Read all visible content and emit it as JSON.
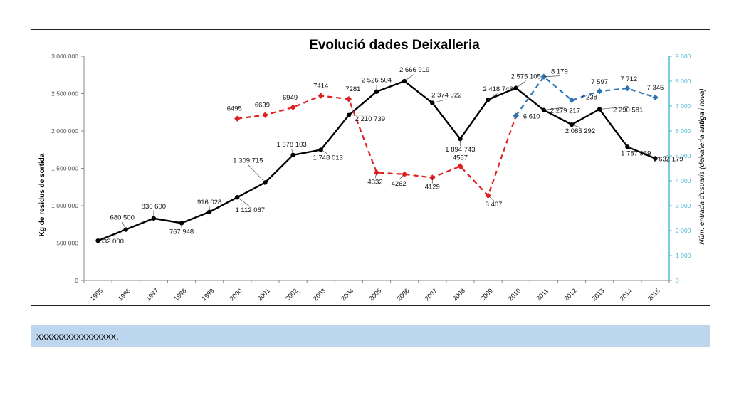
{
  "caption": "xxxxxxxxxxxxxxxx.",
  "chart_data": {
    "type": "line",
    "title": "Evolució dades Deixalleria",
    "ylabel": "Kg de residus de sortida",
    "y2label_parts": [
      "Núm. entrada d'usuaris (deixalleria ",
      "antiga",
      " i nova)"
    ],
    "categories": [
      "1995",
      "1996",
      "1997",
      "1998",
      "1999",
      "2000",
      "2001",
      "2002",
      "2003",
      "2004",
      "2005",
      "2006",
      "2007",
      "2008",
      "2009",
      "2010",
      "2011",
      "2012",
      "2013",
      "2014",
      "2015"
    ],
    "ylim": [
      0,
      3000000
    ],
    "y2lim": [
      0,
      9000
    ],
    "yticks": [
      "0",
      "500 000",
      "1 000 000",
      "1 500 000",
      "2 000 000",
      "2 500 000",
      "3 000 000"
    ],
    "y2ticks": [
      "0",
      "1 000",
      "2 000",
      "3 000",
      "4 000",
      "5 000",
      "6 000",
      "7 000",
      "8 000",
      "9 000"
    ],
    "colors": {
      "kg": "#000000",
      "old": "#e02020",
      "new": "#2e75b6",
      "axis2": "#4fb8d6",
      "title": "#1f3864",
      "label_accent": "#c00000"
    },
    "series": [
      {
        "name": "Kg de residus de sortida",
        "axis": "left",
        "style": "solid",
        "values": [
          532000,
          680500,
          830600,
          767948,
          916028,
          1112067,
          1309715,
          1678103,
          1748013,
          2210739,
          2526504,
          2666919,
          2374922,
          1894743,
          2418746,
          2575105,
          2279217,
          2085292,
          2290581,
          1787969,
          1632179
        ],
        "labels": [
          "532 000",
          "680 500",
          "830 600",
          "767 948",
          "916 028",
          "1 112 067",
          "1 309 715",
          "1 678 103",
          "1 748 013",
          "2 210 739",
          "2 526 504",
          "2 666 919",
          "2 374 922",
          "1 894 743",
          "2 418 746",
          "2 575 105",
          "2 279 217",
          "2 085 292",
          "2 290 581",
          "1 787 969",
          "1 632 179"
        ]
      },
      {
        "name": "antiga",
        "axis": "right",
        "style": "dashed",
        "values": [
          null,
          null,
          null,
          null,
          null,
          6495,
          6639,
          6949,
          7414,
          7281,
          4332,
          4262,
          4129,
          4587,
          3407,
          6610,
          null,
          null,
          null,
          null,
          null
        ],
        "labels": [
          null,
          null,
          null,
          null,
          null,
          "6495",
          "6639",
          "6949",
          "7414",
          "7281",
          "4332",
          "4262",
          "4129",
          "4587",
          "3 407",
          "6 610",
          null,
          null,
          null,
          null,
          null
        ]
      },
      {
        "name": "nova",
        "axis": "right",
        "style": "dashed",
        "values": [
          null,
          null,
          null,
          null,
          null,
          null,
          null,
          null,
          null,
          null,
          null,
          null,
          null,
          null,
          null,
          6610,
          8179,
          7238,
          7597,
          7712,
          7345
        ],
        "labels": [
          null,
          null,
          null,
          null,
          null,
          null,
          null,
          null,
          null,
          null,
          null,
          null,
          null,
          null,
          null,
          null,
          "8 179",
          "7 238",
          "7 597",
          "7 712",
          "7 345"
        ]
      }
    ]
  }
}
